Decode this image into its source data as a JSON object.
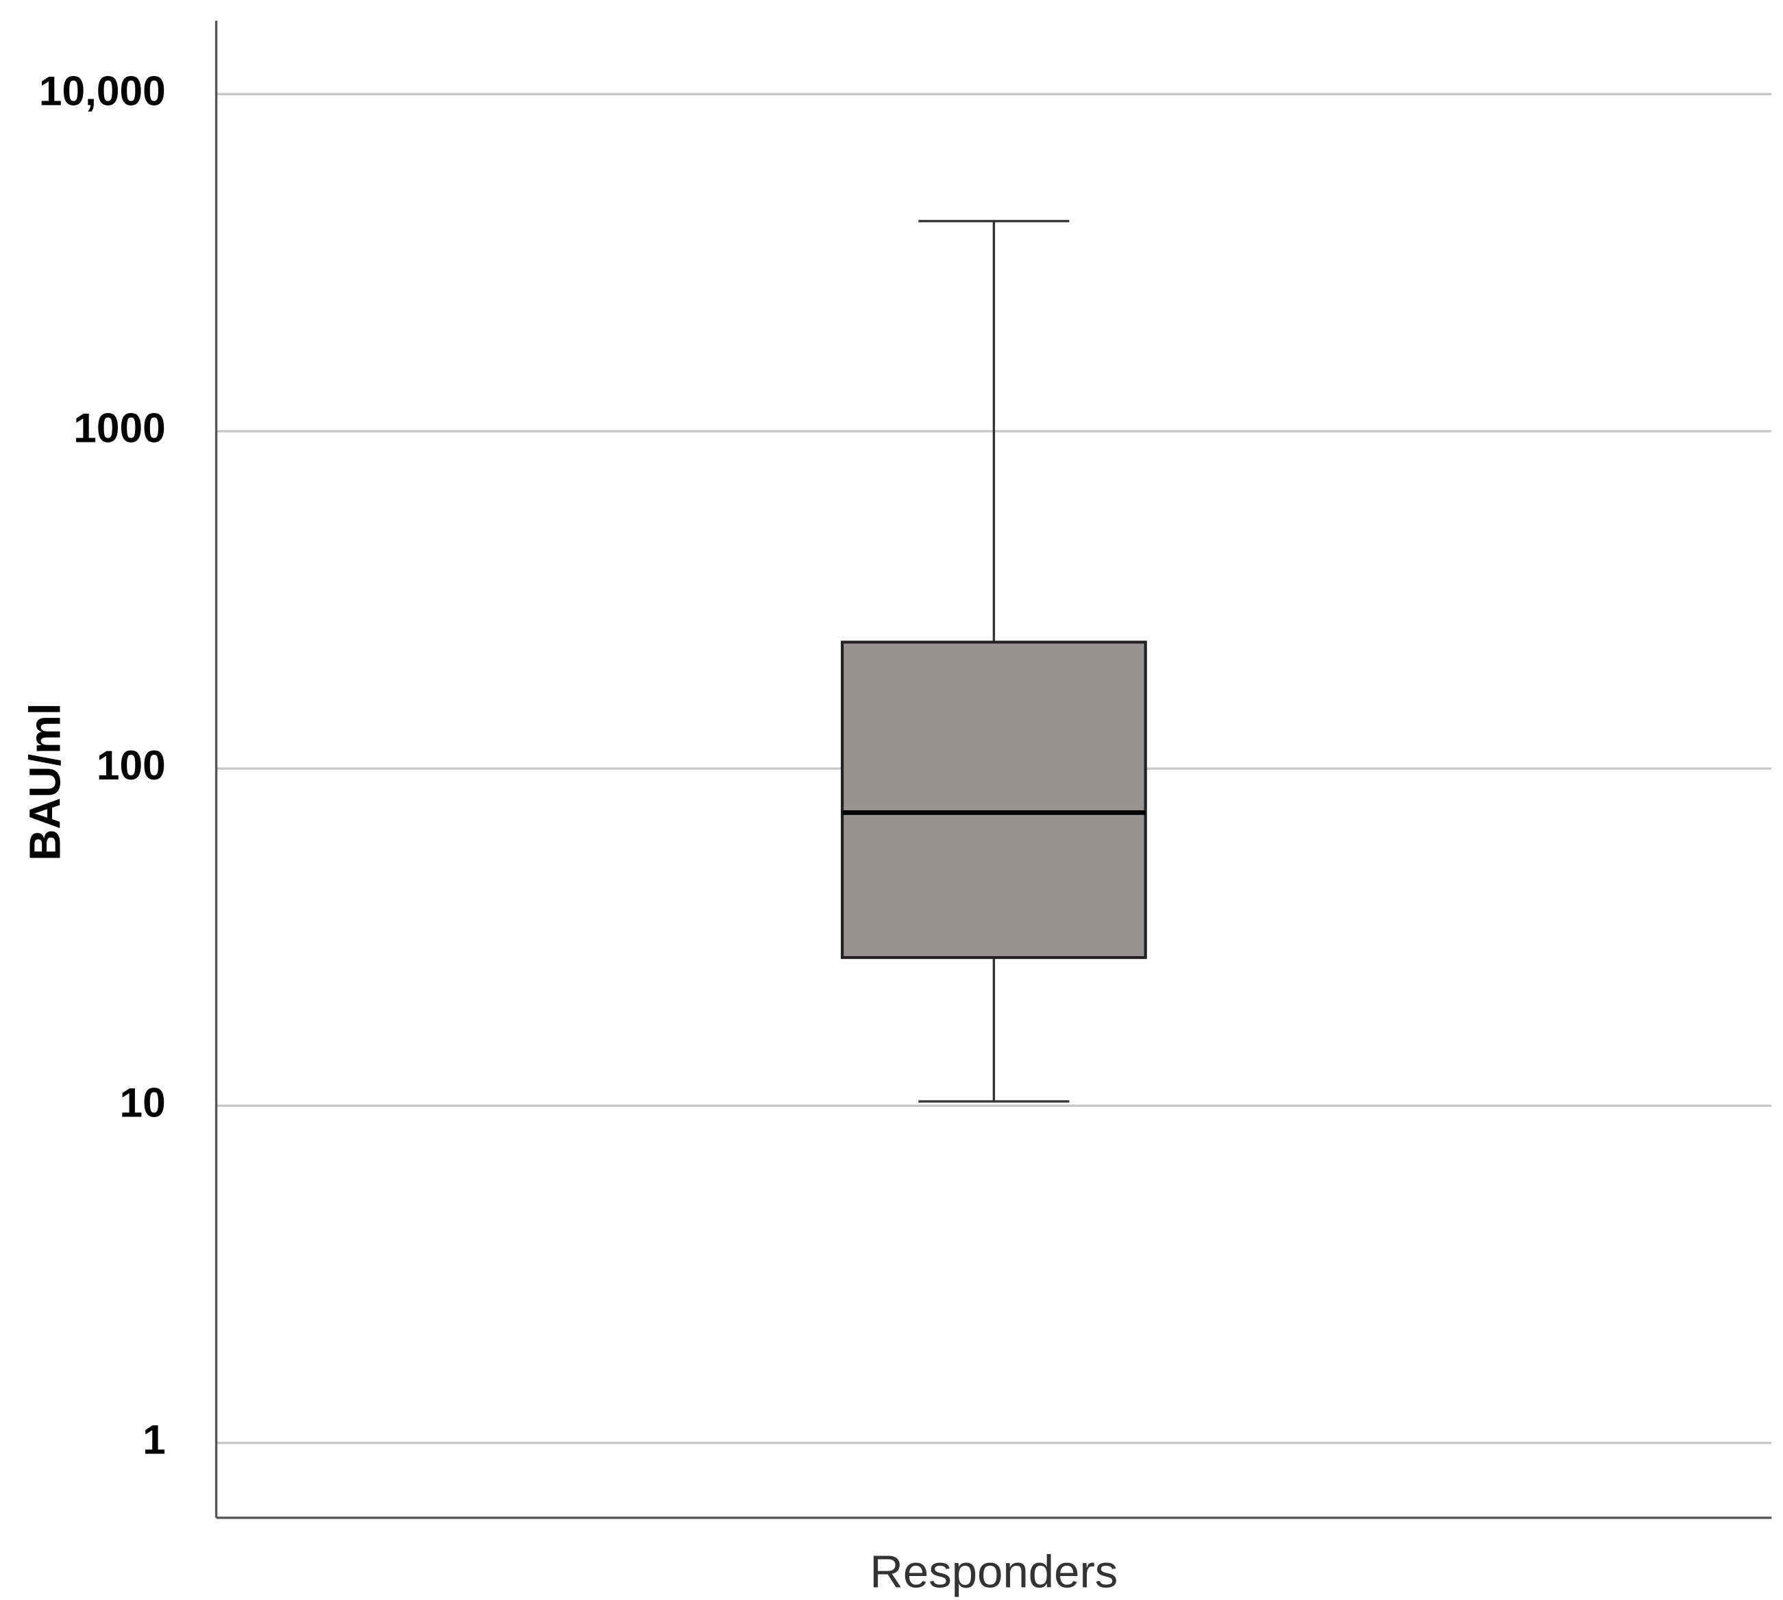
{
  "chart_data": {
    "type": "box",
    "y_label": "BAU/ml",
    "categories": [
      "Responders"
    ],
    "boxes": [
      {
        "whisker_low": 10.3,
        "q1": 27.5,
        "median": 74,
        "q3": 237,
        "whisker_high": 4200
      }
    ],
    "box_color": "#979392",
    "log_y": true,
    "grid": true,
    "ylim": [
      0.6,
      16500
    ],
    "yticks": [
      1,
      10,
      100,
      1000,
      {
        "value": 10000,
        "label": "10,000"
      }
    ]
  }
}
